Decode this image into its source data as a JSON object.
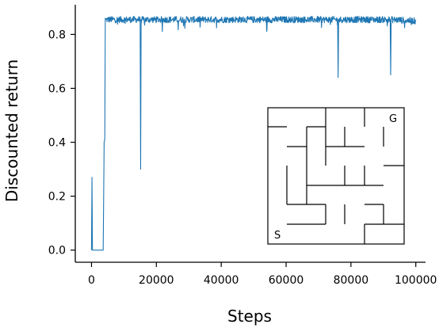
{
  "chart_data": {
    "type": "line",
    "title": "",
    "xlabel": "Steps",
    "ylabel": "Discounted return",
    "xlim": [
      -5000,
      103000
    ],
    "ylim": [
      -0.045,
      0.91
    ],
    "xticks": [
      0,
      20000,
      40000,
      60000,
      80000,
      100000
    ],
    "xtick_labels": [
      "0",
      "20000",
      "40000",
      "60000",
      "80000",
      "100000"
    ],
    "yticks": [
      0.0,
      0.2,
      0.4,
      0.6,
      0.8
    ],
    "ytick_labels": [
      "0.0",
      "0.2",
      "0.4",
      "0.6",
      "0.8"
    ],
    "grid": false,
    "legend": "none",
    "series": [
      {
        "color": "#1f77b4",
        "noise": 0.012,
        "x": [
          0,
          150,
          300,
          600,
          3600,
          3900,
          4100,
          4250,
          4400,
          15000,
          15150,
          15300,
          75900,
          76050,
          76200,
          92100,
          92250,
          92400,
          100000
        ],
        "y": [
          0.0,
          0.27,
          0.0,
          0.0,
          0.0,
          0.4,
          0.41,
          0.86,
          0.855,
          0.855,
          0.3,
          0.855,
          0.855,
          0.64,
          0.855,
          0.855,
          0.65,
          0.855,
          0.85
        ]
      }
    ],
    "inset": {
      "type": "maze",
      "start_label": "S",
      "goal_label": "G"
    }
  }
}
